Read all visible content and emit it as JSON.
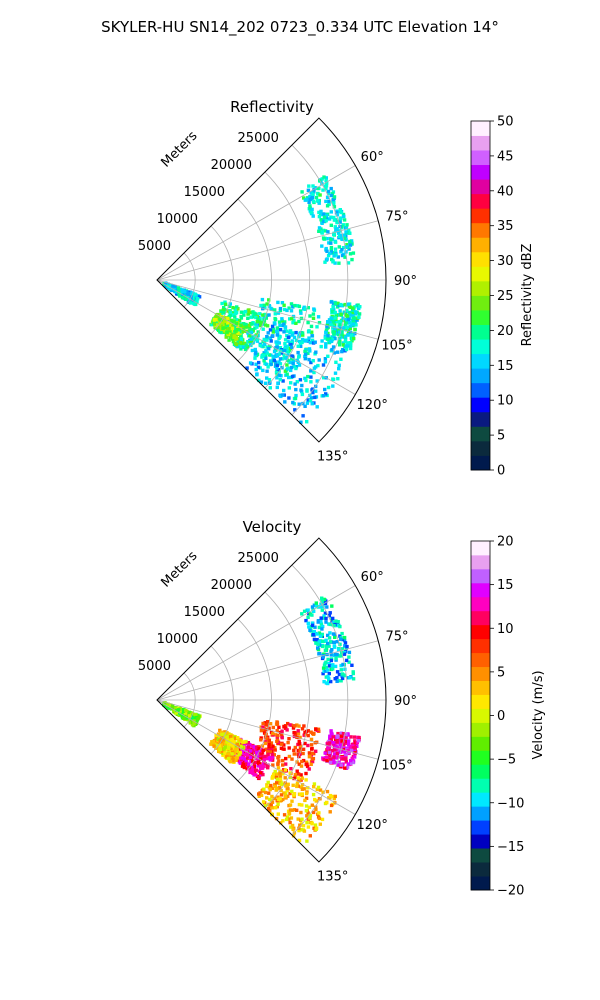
{
  "figure": {
    "suptitle": "SKYLER-HU  SN14_202  0723_0.334 UTC Elevation 14°"
  },
  "chart_data": [
    {
      "type": "heatmap",
      "projection": "polar-sector",
      "title": "Reflectivity",
      "range_label": "Meters",
      "range_ticks": [
        5000,
        10000,
        15000,
        20000,
        25000
      ],
      "range_tick_labels": [
        "5000",
        "10000",
        "15000",
        "20000",
        "25000"
      ],
      "rmax": 30000,
      "theta_range_deg": [
        45,
        135
      ],
      "angle_ticks_deg": [
        60,
        75,
        90,
        105,
        120,
        135
      ],
      "angle_tick_labels": [
        "60°",
        "75°",
        "90°",
        "105°",
        "120°",
        "135°"
      ],
      "grid": true,
      "colorbar": {
        "label": "Reflectivity dBZ",
        "min": 0,
        "max": 50,
        "ticks": [
          0,
          5,
          10,
          15,
          20,
          25,
          30,
          35,
          40,
          45,
          50
        ],
        "tick_labels": [
          "0",
          "5",
          "10",
          "15",
          "20",
          "25",
          "30",
          "35",
          "40",
          "45",
          "50"
        ],
        "colors": [
          "#001a4d",
          "#0b2a3d",
          "#0e4a40",
          "#0a1a80",
          "#0000ff",
          "#0060ff",
          "#00a8ff",
          "#00d8ff",
          "#00ffd8",
          "#00ff90",
          "#30ff30",
          "#70ee10",
          "#b0f000",
          "#e8f800",
          "#ffe000",
          "#ffb000",
          "#ff7800",
          "#ff3000",
          "#ff0040",
          "#e000a0",
          "#c000ff",
          "#d060ff",
          "#e8a0f0",
          "#fff0ff"
        ]
      },
      "echo_regions": [
        {
          "r_km": [
            22,
            26
          ],
          "theta_deg": [
            58,
            85
          ],
          "value": 17
        },
        {
          "r_km": [
            23,
            27
          ],
          "theta_deg": [
            97,
            110
          ],
          "value": 18
        },
        {
          "r_km": [
            14,
            22
          ],
          "theta_deg": [
            100,
            128
          ],
          "value": 18
        },
        {
          "r_km": [
            9,
            15
          ],
          "theta_deg": [
            108,
            130
          ],
          "value": 20
        },
        {
          "r_km": [
            9,
            13
          ],
          "theta_deg": [
            118,
            128
          ],
          "value": 24
        },
        {
          "r_km": [
            1,
            6
          ],
          "theta_deg": [
            110,
            125
          ],
          "value": 16
        },
        {
          "r_km": [
            16,
            27
          ],
          "theta_deg": [
            110,
            135
          ],
          "value": 15
        }
      ]
    },
    {
      "type": "heatmap",
      "projection": "polar-sector",
      "title": "Velocity",
      "range_label": "Meters",
      "range_ticks": [
        5000,
        10000,
        15000,
        20000,
        25000
      ],
      "range_tick_labels": [
        "5000",
        "10000",
        "15000",
        "20000",
        "25000"
      ],
      "rmax": 30000,
      "theta_range_deg": [
        45,
        135
      ],
      "angle_ticks_deg": [
        60,
        75,
        90,
        105,
        120,
        135
      ],
      "angle_tick_labels": [
        "60°",
        "75°",
        "90°",
        "105°",
        "120°",
        "135°"
      ],
      "grid": true,
      "colorbar": {
        "label": "Velocity (m/s)",
        "min": -20,
        "max": 20,
        "ticks": [
          -20,
          -15,
          -10,
          -5,
          0,
          5,
          10,
          15,
          20
        ],
        "tick_labels": [
          "−20",
          "−15",
          "−10",
          "−5",
          "0",
          "5",
          "10",
          "15",
          "20"
        ],
        "colors": [
          "#001a4d",
          "#0b2a3d",
          "#0e4a40",
          "#0000c0",
          "#0040ff",
          "#00a0ff",
          "#00e8ff",
          "#00ffb0",
          "#00ff60",
          "#20ff20",
          "#60ee00",
          "#a0f000",
          "#d8f800",
          "#ffe800",
          "#ffc000",
          "#ff9000",
          "#ff6000",
          "#ff3000",
          "#ff0000",
          "#ff0060",
          "#ff00c0",
          "#e000ff",
          "#c060ff",
          "#e8a0f0",
          "#fff0ff"
        ]
      },
      "echo_regions": [
        {
          "r_km": [
            22,
            26
          ],
          "theta_deg": [
            58,
            85
          ],
          "value": -10
        },
        {
          "r_km": [
            23,
            27
          ],
          "theta_deg": [
            100,
            110
          ],
          "value": 13
        },
        {
          "r_km": [
            14,
            22
          ],
          "theta_deg": [
            100,
            120
          ],
          "value": 8
        },
        {
          "r_km": [
            12,
            17
          ],
          "theta_deg": [
            115,
            128
          ],
          "value": 12
        },
        {
          "r_km": [
            9,
            13
          ],
          "theta_deg": [
            115,
            130
          ],
          "value": 2
        },
        {
          "r_km": [
            1,
            6
          ],
          "theta_deg": [
            110,
            125
          ],
          "value": -3
        },
        {
          "r_km": [
            18,
            27
          ],
          "theta_deg": [
            118,
            135
          ],
          "value": 3
        }
      ]
    }
  ]
}
